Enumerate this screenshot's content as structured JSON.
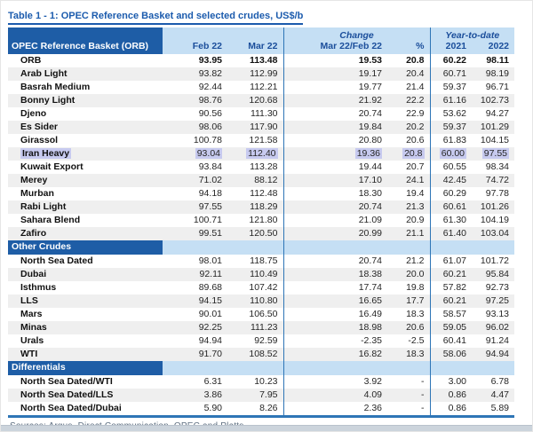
{
  "title": "Table 1 - 1: OPEC Reference Basket and selected crudes, US$/b",
  "header": {
    "label_col": "OPEC Reference Basket (ORB)",
    "change_group": "Change",
    "ytd_group": "Year-to-date",
    "columns": [
      "Feb 22",
      "Mar 22",
      "Mar 22/Feb 22",
      "%",
      "2021",
      "2022"
    ]
  },
  "sections": [
    {
      "name": "",
      "rows": [
        {
          "label": "ORB",
          "values": [
            "93.95",
            "113.48",
            "19.53",
            "20.8",
            "60.22",
            "98.11"
          ],
          "bold": true
        },
        {
          "label": "Arab Light",
          "values": [
            "93.82",
            "112.99",
            "19.17",
            "20.4",
            "60.71",
            "98.19"
          ]
        },
        {
          "label": "Basrah Medium",
          "values": [
            "92.44",
            "112.21",
            "19.77",
            "21.4",
            "59.37",
            "96.71"
          ]
        },
        {
          "label": "Bonny Light",
          "values": [
            "98.76",
            "120.68",
            "21.92",
            "22.2",
            "61.16",
            "102.73"
          ]
        },
        {
          "label": "Djeno",
          "values": [
            "90.56",
            "111.30",
            "20.74",
            "22.9",
            "53.62",
            "94.27"
          ]
        },
        {
          "label": "Es Sider",
          "values": [
            "98.06",
            "117.90",
            "19.84",
            "20.2",
            "59.37",
            "101.29"
          ]
        },
        {
          "label": "Girassol",
          "values": [
            "100.78",
            "121.58",
            "20.80",
            "20.6",
            "61.83",
            "104.15"
          ]
        },
        {
          "label": "Iran Heavy",
          "values": [
            "93.04",
            "112.40",
            "19.36",
            "20.8",
            "60.00",
            "97.55"
          ],
          "highlight": true
        },
        {
          "label": "Kuwait Export",
          "values": [
            "93.84",
            "113.28",
            "19.44",
            "20.7",
            "60.55",
            "98.34"
          ]
        },
        {
          "label": "Merey",
          "values": [
            "71.02",
            "88.12",
            "17.10",
            "24.1",
            "42.45",
            "74.72"
          ]
        },
        {
          "label": "Murban",
          "values": [
            "94.18",
            "112.48",
            "18.30",
            "19.4",
            "60.29",
            "97.78"
          ]
        },
        {
          "label": "Rabi Light",
          "values": [
            "97.55",
            "118.29",
            "20.74",
            "21.3",
            "60.61",
            "101.26"
          ]
        },
        {
          "label": "Sahara Blend",
          "values": [
            "100.71",
            "121.80",
            "21.09",
            "20.9",
            "61.30",
            "104.19"
          ]
        },
        {
          "label": "Zafiro",
          "values": [
            "99.51",
            "120.50",
            "20.99",
            "21.1",
            "61.40",
            "103.04"
          ]
        }
      ]
    },
    {
      "name": "Other Crudes",
      "rows": [
        {
          "label": "North Sea Dated",
          "values": [
            "98.01",
            "118.75",
            "20.74",
            "21.2",
            "61.07",
            "101.72"
          ]
        },
        {
          "label": "Dubai",
          "values": [
            "92.11",
            "110.49",
            "18.38",
            "20.0",
            "60.21",
            "95.84"
          ]
        },
        {
          "label": "Isthmus",
          "values": [
            "89.68",
            "107.42",
            "17.74",
            "19.8",
            "57.82",
            "92.73"
          ]
        },
        {
          "label": "LLS",
          "values": [
            "94.15",
            "110.80",
            "16.65",
            "17.7",
            "60.21",
            "97.25"
          ]
        },
        {
          "label": "Mars",
          "values": [
            "90.01",
            "106.50",
            "16.49",
            "18.3",
            "58.57",
            "93.13"
          ]
        },
        {
          "label": "Minas",
          "values": [
            "92.25",
            "111.23",
            "18.98",
            "20.6",
            "59.05",
            "96.02"
          ]
        },
        {
          "label": "Urals",
          "values": [
            "94.94",
            "92.59",
            "-2.35",
            "-2.5",
            "60.41",
            "91.24"
          ]
        },
        {
          "label": "WTI",
          "values": [
            "91.70",
            "108.52",
            "16.82",
            "18.3",
            "58.06",
            "94.94"
          ]
        }
      ]
    },
    {
      "name": "Differentials",
      "rows": [
        {
          "label": "North Sea Dated/WTI",
          "values": [
            "6.31",
            "10.23",
            "3.92",
            "-",
            "3.00",
            "6.78"
          ]
        },
        {
          "label": "North Sea Dated/LLS",
          "values": [
            "3.86",
            "7.95",
            "4.09",
            "-",
            "0.86",
            "4.47"
          ]
        },
        {
          "label": "North Sea Dated/Dubai",
          "values": [
            "5.90",
            "8.26",
            "2.36",
            "-",
            "0.86",
            "5.89"
          ]
        }
      ]
    }
  ],
  "source_note": "Sources:  Argus, Direct Communication, OPEC and Platts.",
  "colors": {
    "title_blue": "#1b5bad",
    "dark_header": "#1e5da6",
    "light_band": "#c5dff4",
    "header_text": "#1b4e9b",
    "stripe": "#efefef",
    "grid_line": "#2e75b6",
    "highlight": "#c7caef"
  }
}
